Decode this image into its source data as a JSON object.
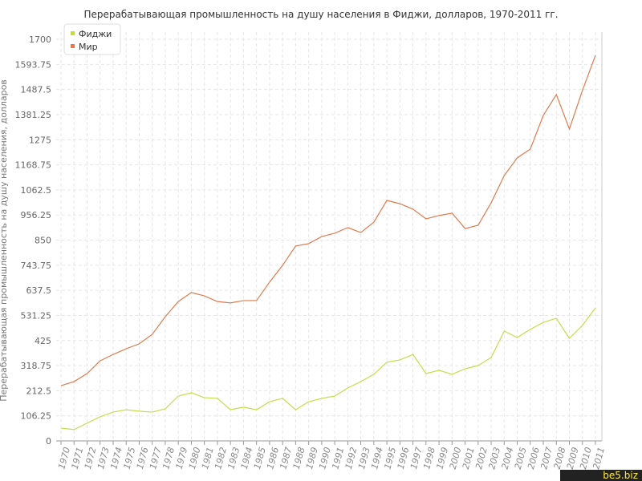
{
  "chart_data": {
    "type": "line",
    "title": "Перерабатывающая промышленность на душу населения в Фиджи, долларов, 1970-2011 гг.",
    "y_label": "Перерабатывающая промышленность на душу населения, долларов",
    "watermark": "be5.biz",
    "categories": [
      "1970",
      "1971",
      "1972",
      "1973",
      "1974",
      "1975",
      "1976",
      "1977",
      "1978",
      "1979",
      "1980",
      "1981",
      "1982",
      "1983",
      "1984",
      "1985",
      "1986",
      "1987",
      "1988",
      "1989",
      "1990",
      "1991",
      "1992",
      "1993",
      "1994",
      "1995",
      "1996",
      "1997",
      "1998",
      "1999",
      "2000",
      "2001",
      "2002",
      "2003",
      "2004",
      "2005",
      "2006",
      "2007",
      "2008",
      "2009",
      "2010",
      "2011"
    ],
    "series": [
      {
        "name": "Фиджи",
        "color": "#c5dc4a",
        "values": [
          54,
          48,
          75,
          102,
          122,
          132,
          126,
          122,
          136,
          190,
          204,
          183,
          180,
          132,
          143,
          132,
          166,
          180,
          132,
          166,
          180,
          190,
          224,
          251,
          282,
          333,
          343,
          366,
          285,
          299,
          282,
          305,
          319,
          353,
          465,
          438,
          472,
          502,
          519,
          434,
          489,
          563
        ]
      },
      {
        "name": "Мир",
        "color": "#e07a4e",
        "values": [
          234,
          251,
          285,
          339,
          366,
          390,
          411,
          451,
          526,
          590,
          628,
          614,
          590,
          584,
          594,
          594,
          672,
          743,
          825,
          835,
          865,
          879,
          903,
          882,
          926,
          1018,
          1004,
          981,
          940,
          954,
          964,
          899,
          913,
          1008,
          1123,
          1198,
          1235,
          1378,
          1466,
          1320,
          1483,
          1632
        ]
      }
    ],
    "ylim": [
      0,
      1700
    ],
    "yticks": [
      0,
      106.25,
      212.5,
      318.75,
      425,
      531.25,
      637.5,
      743.75,
      850,
      956.25,
      1062.5,
      1168.75,
      1275,
      1381.25,
      1487.5,
      1593.75,
      1700
    ],
    "grid": true,
    "legend": "top-left"
  }
}
